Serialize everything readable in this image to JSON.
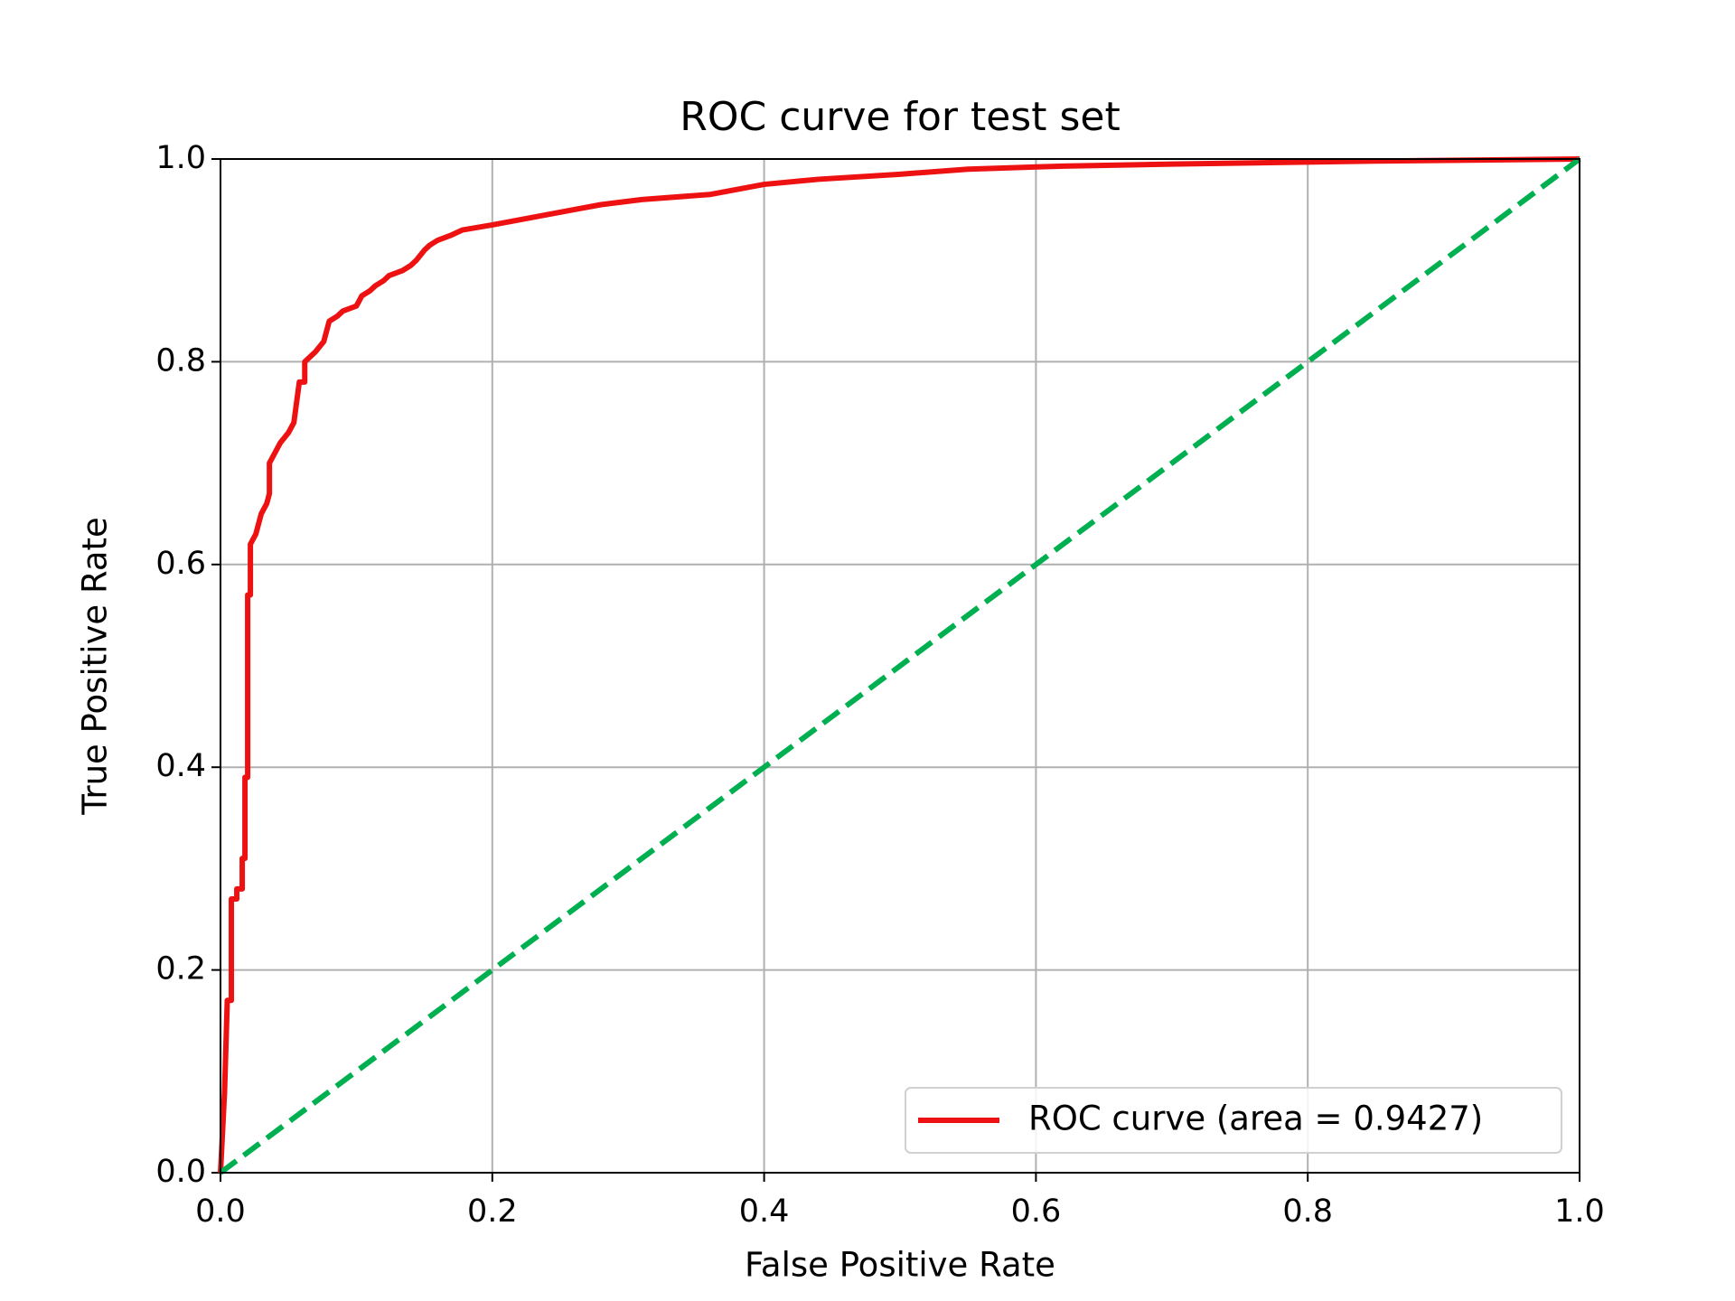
{
  "chart_data": {
    "type": "line",
    "title": "ROC curve for test set",
    "x_label": "False Positive Rate",
    "y_label": "True Positive Rate",
    "xlim": [
      0.0,
      1.0
    ],
    "ylim": [
      0.0,
      1.0
    ],
    "xticks": [
      {
        "value": 0,
        "label": "0.0"
      },
      0.2,
      0.4,
      0.6,
      0.8,
      {
        "value": 1,
        "label": "1.0"
      }
    ],
    "yticks": [
      {
        "value": 0,
        "label": "0.0"
      },
      0.2,
      0.4,
      0.6,
      0.8,
      {
        "value": 1,
        "label": "1.0"
      }
    ],
    "grid": true,
    "legend": "lower right",
    "series": [
      {
        "name": "ROC curve (area = 0.9427)",
        "color": "#ee1111",
        "linestyle": "solid",
        "x": [
          0,
          0.003,
          0.005,
          0.008,
          0.008,
          0.012,
          0.012,
          0.016,
          0.016,
          0.018,
          0.018,
          0.02,
          0.02,
          0.022,
          0.022,
          0.026,
          0.03,
          0.034,
          0.036,
          0.036,
          0.04,
          0.044,
          0.05,
          0.054,
          0.056,
          0.058,
          0.062,
          0.062,
          0.07,
          0.076,
          0.078,
          0.08,
          0.086,
          0.09,
          0.1,
          0.104,
          0.11,
          0.114,
          0.12,
          0.124,
          0.134,
          0.14,
          0.144,
          0.15,
          0.154,
          0.16,
          0.17,
          0.178,
          0.2,
          0.22,
          0.24,
          0.26,
          0.28,
          0.31,
          0.36,
          0.38,
          0.4,
          0.44,
          0.5,
          0.55,
          0.62,
          0.7,
          0.85,
          1
        ],
        "values": [
          0,
          0.08,
          0.17,
          0.17,
          0.27,
          0.27,
          0.28,
          0.28,
          0.31,
          0.31,
          0.39,
          0.39,
          0.57,
          0.57,
          0.62,
          0.63,
          0.65,
          0.66,
          0.67,
          0.7,
          0.71,
          0.72,
          0.73,
          0.74,
          0.76,
          0.78,
          0.78,
          0.8,
          0.81,
          0.82,
          0.83,
          0.84,
          0.845,
          0.85,
          0.855,
          0.865,
          0.87,
          0.875,
          0.88,
          0.885,
          0.89,
          0.895,
          0.9,
          0.91,
          0.915,
          0.92,
          0.925,
          0.93,
          0.935,
          0.94,
          0.945,
          0.95,
          0.955,
          0.96,
          0.965,
          0.97,
          0.975,
          0.98,
          0.985,
          0.99,
          0.993,
          0.995,
          0.998,
          1
        ]
      },
      {
        "color": "#00b050",
        "linestyle": "dashed",
        "x": [
          0,
          1
        ],
        "values": [
          0,
          1
        ]
      }
    ]
  }
}
